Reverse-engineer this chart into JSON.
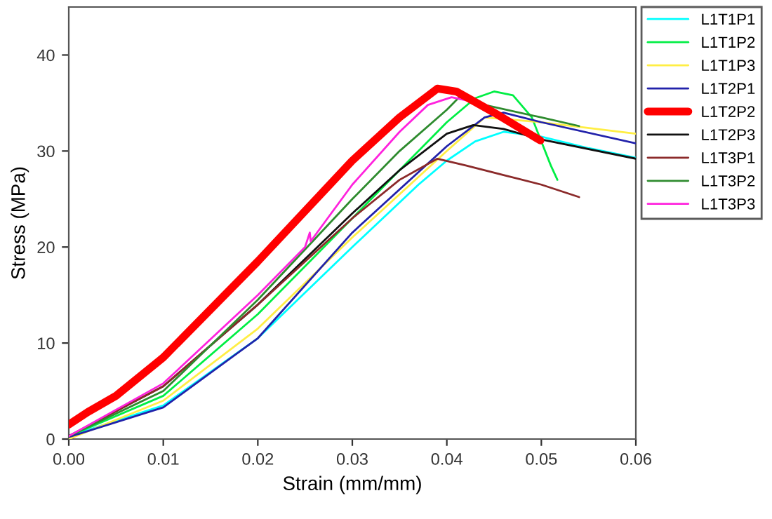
{
  "chart_data": {
    "type": "line",
    "xlabel": "Strain (mm/mm)",
    "ylabel": "Stress (MPa)",
    "xlim": [
      0,
      0.06
    ],
    "ylim": [
      0,
      45
    ],
    "xticks": [
      {
        "value": 0,
        "label": "0.00"
      },
      0.01,
      0.02,
      0.03,
      0.04,
      0.05,
      {
        "value": 0.06,
        "label": "0.06"
      }
    ],
    "yticks": [
      0,
      10,
      20,
      30,
      40
    ],
    "grid": false,
    "legend": "right",
    "marker": "none",
    "line_style": "solid",
    "series": [
      {
        "name": "L1T1P1",
        "color": "#00ffff",
        "x": [
          0,
          0.01,
          0.02,
          0.03,
          0.037,
          0.04,
          0.043,
          0.046,
          0.05,
          0.055,
          0.06
        ],
        "values": [
          0.3,
          3.5,
          10.5,
          20,
          26.5,
          29,
          31,
          32,
          31.5,
          30.3,
          29.3
        ]
      },
      {
        "name": "L1T1P2",
        "color": "#00ee44",
        "x": [
          0,
          0.01,
          0.02,
          0.03,
          0.04,
          0.043,
          0.045,
          0.047,
          0.049,
          0.05,
          0.051,
          0.0517
        ],
        "values": [
          0.3,
          4.5,
          13,
          23,
          33,
          35.5,
          36.2,
          35.8,
          33.5,
          31,
          28.5,
          27
        ]
      },
      {
        "name": "L1T1P3",
        "color": "#ffee44",
        "x": [
          0,
          0.01,
          0.02,
          0.03,
          0.04,
          0.044,
          0.05,
          0.06
        ],
        "values": [
          0,
          4,
          11.5,
          21,
          30,
          33.5,
          33,
          31.8
        ]
      },
      {
        "name": "L1T2P1",
        "color": "#2222aa",
        "x": [
          0,
          0.01,
          0.02,
          0.03,
          0.04,
          0.044,
          0.046,
          0.05,
          0.06
        ],
        "values": [
          0.2,
          3.3,
          10.5,
          21.5,
          30.5,
          33.5,
          34,
          33,
          30.8
        ]
      },
      {
        "name": "L1T2P2",
        "color": "#ff0000",
        "x": [
          0,
          0.002,
          0.005,
          0.01,
          0.02,
          0.03,
          0.035,
          0.039,
          0.041,
          0.045,
          0.0499
        ],
        "values": [
          1.5,
          2.8,
          4.5,
          8.5,
          18.5,
          29,
          33.5,
          36.5,
          36.2,
          34,
          31.1
        ]
      },
      {
        "name": "L1T2P3",
        "color": "#111111",
        "x": [
          0,
          0.01,
          0.02,
          0.03,
          0.035,
          0.04,
          0.0428,
          0.046,
          0.05,
          0.06
        ],
        "values": [
          0.3,
          5.5,
          14,
          23.5,
          28,
          31.8,
          32.7,
          32.3,
          31.2,
          29.2
        ]
      },
      {
        "name": "L1T3P1",
        "color": "#8b2a2a",
        "x": [
          0,
          0.01,
          0.02,
          0.03,
          0.035,
          0.039,
          0.042,
          0.046,
          0.05,
          0.054
        ],
        "values": [
          0.3,
          5.5,
          14,
          23,
          27,
          29.2,
          28.5,
          27.5,
          26.5,
          25.2
        ]
      },
      {
        "name": "L1T3P2",
        "color": "#2e8b2e",
        "x": [
          0,
          0.01,
          0.02,
          0.03,
          0.035,
          0.04,
          0.0413,
          0.044,
          0.05,
          0.054
        ],
        "values": [
          0.3,
          5,
          14.5,
          25,
          30,
          34.3,
          35.6,
          34.8,
          33.5,
          32.6
        ]
      },
      {
        "name": "L1T3P3",
        "color": "#ff22dd",
        "x": [
          0,
          0.01,
          0.02,
          0.025,
          0.0255,
          0.0256,
          0.03,
          0.035,
          0.038,
          0.0405,
          0.042
        ],
        "values": [
          0.3,
          5.8,
          15,
          20,
          21.5,
          20.6,
          26.5,
          32,
          34.8,
          35.6,
          35.3
        ]
      }
    ]
  }
}
